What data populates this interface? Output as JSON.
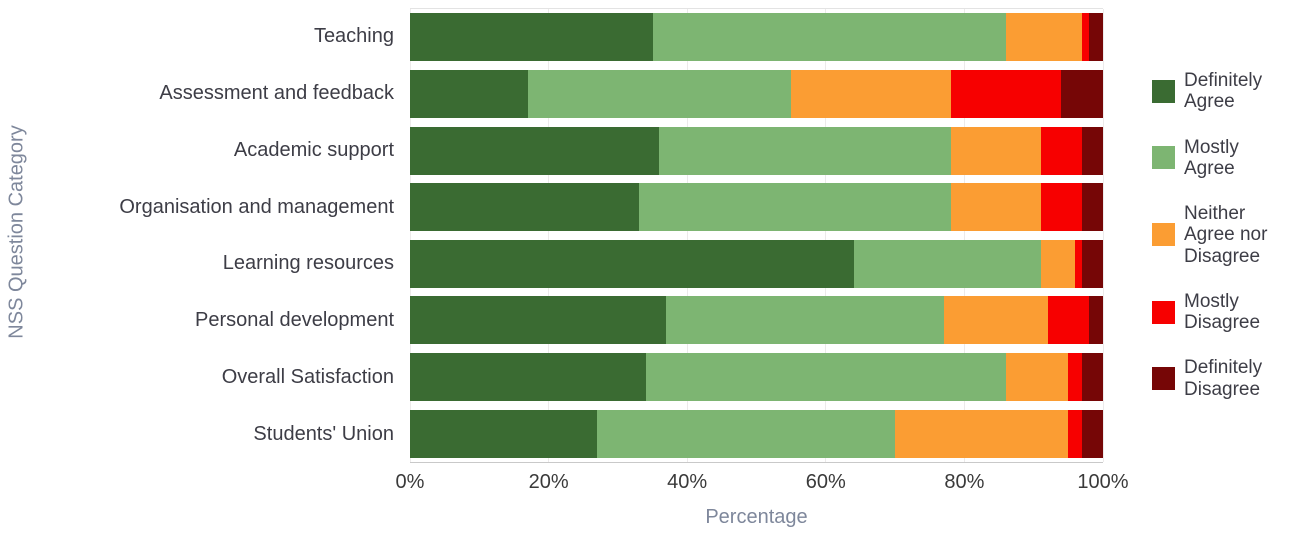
{
  "chart_data": {
    "type": "bar",
    "orientation": "horizontal",
    "stacked": true,
    "xlabel": "Percentage",
    "ylabel": "NSS Question Category",
    "xlim": [
      0,
      100
    ],
    "grid": "vertical-light",
    "x_ticks": [
      "0%",
      "20%",
      "40%",
      "60%",
      "80%",
      "100%"
    ],
    "x_tick_values": [
      0,
      20,
      40,
      60,
      80,
      100
    ],
    "categories": [
      "Teaching",
      "Assessment and feedback",
      "Academic support",
      "Organisation and management",
      "Learning resources",
      "Personal development",
      "Overall Satisfaction",
      "Students' Union"
    ],
    "series": [
      {
        "name": "Definitely Agree",
        "color": "#3a6b32",
        "values": [
          35,
          17,
          36,
          33,
          64,
          37,
          34,
          27
        ]
      },
      {
        "name": "Mostly Agree",
        "color": "#7db572",
        "values": [
          51,
          38,
          42,
          45,
          27,
          40,
          52,
          43
        ]
      },
      {
        "name": "Neither Agree nor Disagree",
        "color": "#fb9d33",
        "values": [
          11,
          23,
          13,
          13,
          5,
          15,
          9,
          25
        ]
      },
      {
        "name": "Mostly Disagree",
        "color": "#f70000",
        "values": [
          1,
          16,
          6,
          6,
          1,
          6,
          2,
          2
        ]
      },
      {
        "name": "Definitely Disagree",
        "color": "#760606",
        "values": [
          2,
          6,
          3,
          3,
          3,
          2,
          3,
          3
        ]
      }
    ],
    "legend": {
      "position": "right",
      "labels": [
        "Definitely\nAgree",
        "Mostly\nAgree",
        "Neither\nAgree nor\nDisagree",
        "Mostly\nDisagree",
        "Definitely\nDisagree"
      ]
    }
  },
  "style": {
    "label_color": "#3d3d46",
    "tick_color": "#3a3a3a",
    "axis_title_color": "#7e879b",
    "gridline_color": "#eceaea"
  }
}
